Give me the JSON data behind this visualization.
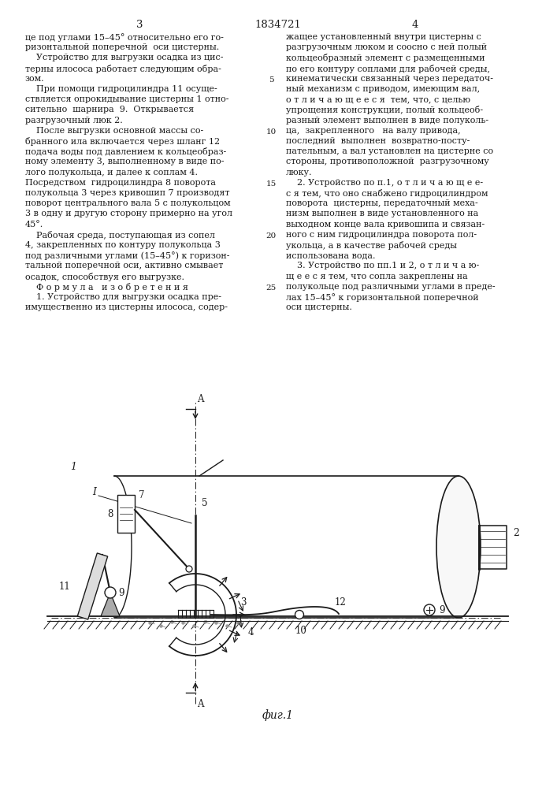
{
  "page_number_left": "3",
  "patent_number": "1834721",
  "page_number_right": "4",
  "background_color": "#ffffff",
  "text_color": "#1a1a1a",
  "left_column_lines": [
    "це под углами 15–45° относительно его го-",
    "ризонтальной поперечной  оси цистерны.",
    "    Устройство для выгрузки осадка из цис-",
    "терны илососа работает следующим обра-",
    "зом.",
    "    При помощи гидроцилиндра 11 осуще-",
    "ствляется опрокидывание цистерны 1 отно-",
    "сительно  шарнира  9.  Открывается",
    "разгрузочный люк 2.",
    "    После выгрузки основной массы со-",
    "бранного ила включается через шланг 12",
    "подача воды под давлением к кольцеобраз-",
    "ному элементу 3, выполненному в виде по-",
    "лого полукольца, и далее к соплам 4.",
    "Посредством  гидроцилиндра 8 поворота",
    "полукольца 3 через кривошип 7 производят",
    "поворот центрального вала 5 с полукольцом",
    "3 в одну и другую сторону примерно на угол",
    "45°.",
    "    Рабочая среда, поступающая из сопел",
    "4, закрепленных по контуру полукольца 3",
    "под различными углами (15–45°) к горизон-",
    "тальной поперечной оси, активно смывает",
    "осадок, способствуя его выгрузке.",
    "    Ф о р м у л а   и з о б р е т е н и я",
    "    1. Устройство для выгрузки осадка пре-",
    "имущественно из цистерны илососа, содер-"
  ],
  "right_column_lines": [
    "жащее установленный внутри цистерны с",
    "разгрузочным люком и соосно с ней полый",
    "кольцеобразный элемент с размещенными",
    "по его контуру соплами для рабочей среды,",
    "кинематически связанный через передаточ-",
    "ный механизм с приводом, имеющим вал,",
    "о т л и ч а ю щ е е с я  тем, что, с целью",
    "упрощения конструкции, полый кольцеоб-",
    "разный элемент выполнен в виде полуколь-",
    "ца,  закрепленного   на валу привода,",
    "последний  выполнен  возвратно-посту-",
    "пательным, а вал установлен на цистерне со",
    "стороны, противоположной  разгрузочному",
    "люку.",
    "    2. Устройство по п.1, о т л и ч а ю щ е е-",
    "с я тем, что оно снабжено гидроцилиндром",
    "поворота  цистерны, передаточный меха-",
    "низм выполнен в виде установленного на",
    "выходном конце вала кривошипа и связан-",
    "ного с ним гидроцилиндра поворота пол-",
    "укольца, а в качестве рабочей среды",
    "использована вода.",
    "    3. Устройство по пп.1 и 2, о т л и ч а ю-",
    "щ е е с я тем, что сопла закреплены на",
    "полукольце под различными углами в преде-",
    "лах 15–45° к горизонтальной поперечной",
    "оси цистерны."
  ],
  "fig_label": "фиг.1"
}
